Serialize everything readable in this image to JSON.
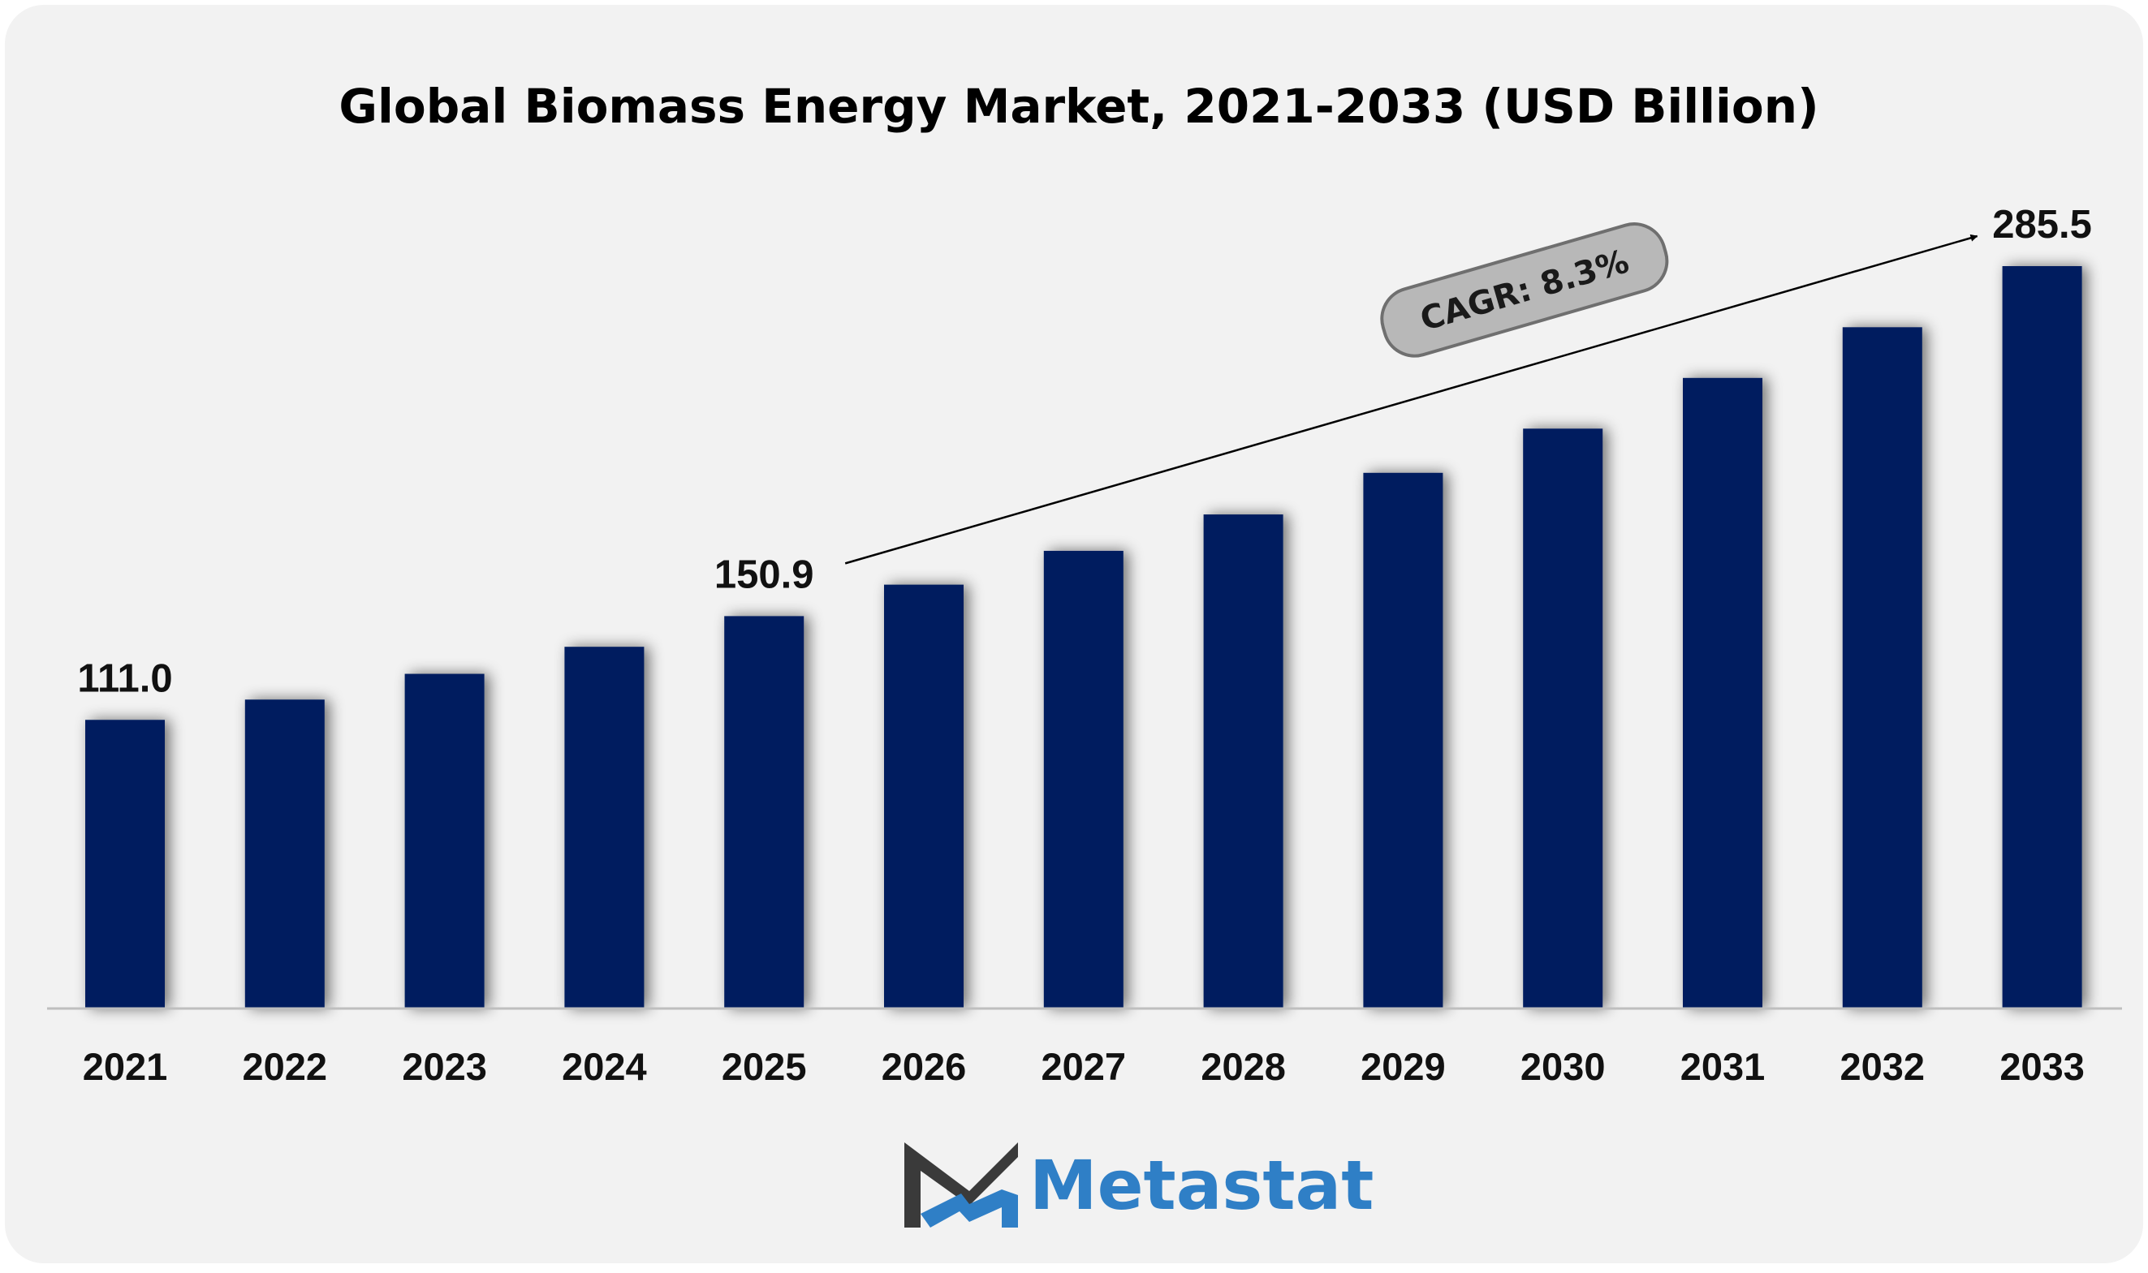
{
  "chart_data": {
    "type": "bar",
    "title": "Global Biomass Energy Market, 2021-2033 (USD Billion)",
    "xlabel": "",
    "ylabel": "",
    "categories": [
      "2021",
      "2022",
      "2023",
      "2024",
      "2025",
      "2026",
      "2027",
      "2028",
      "2029",
      "2030",
      "2031",
      "2032",
      "2033"
    ],
    "values": [
      111.0,
      118.8,
      128.7,
      139.1,
      150.9,
      163.0,
      176.0,
      190.0,
      206.0,
      223.0,
      242.5,
      262.0,
      285.5
    ],
    "data_labels": [
      {
        "category": "2021",
        "text": "111.0"
      },
      {
        "category": "2025",
        "text": "150.9"
      },
      {
        "category": "2033",
        "text": "285.5"
      }
    ],
    "annotation": {
      "text": "CAGR: 8.3%",
      "from": "2025",
      "to": "2033"
    },
    "ylim": [
      0,
      310
    ],
    "grid": false,
    "legend": "none",
    "bar_color": "#021f5e"
  },
  "branding": {
    "logo_text": "Metastat",
    "logo_icon": "metastat-m-logo-icon",
    "text_color": "#2f7fc6"
  }
}
